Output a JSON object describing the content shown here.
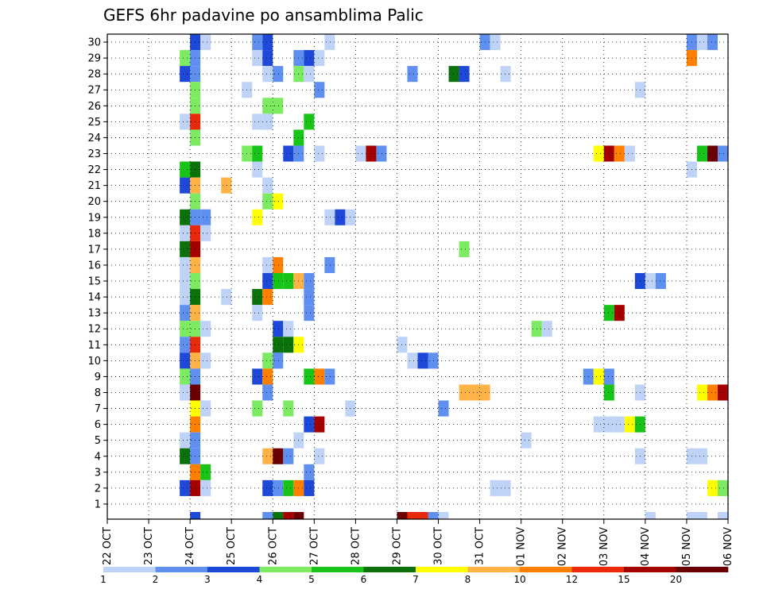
{
  "chart_data": {
    "type": "heatmap",
    "title": "GEFS 6hr padavine po ansamblima Palic",
    "xlabel": "",
    "ylabel": "",
    "x_ticks": [
      "22 OCT",
      "23 OCT",
      "24 OCT",
      "25 OCT",
      "26 OCT",
      "27 OCT",
      "28 OCT",
      "29 OCT",
      "30 OCT",
      "31 OCT",
      "01 NOV",
      "02 NOV",
      "03 NOV",
      "04 NOV",
      "05 NOV",
      "06 NOV"
    ],
    "x_unit": "6-hour step from 22 OCT 00Z (4 steps per day, 60 steps)",
    "xlim": [
      0,
      60
    ],
    "y_ticks": [
      1,
      2,
      3,
      4,
      5,
      6,
      7,
      8,
      9,
      10,
      11,
      12,
      13,
      14,
      15,
      16,
      17,
      18,
      19,
      20,
      21,
      22,
      23,
      24,
      25,
      26,
      27,
      28,
      29,
      30
    ],
    "ylim": [
      0,
      30
    ],
    "grid": true,
    "colorbar": {
      "colors": [
        "#bfd2f8",
        "#5f8fef",
        "#1e49d8",
        "#7ceb61",
        "#19c419",
        "#0b720b",
        "#ffff00",
        "#ffb347",
        "#ff7f00",
        "#e8290b",
        "#a50000",
        "#6b0000"
      ],
      "labels": [
        "1",
        "2",
        "3",
        "4",
        "5",
        "6",
        "7",
        "8",
        "10",
        "12",
        "15",
        "20"
      ]
    },
    "cells_format": "[member_row, x_step, colorbar_class_index] (class index into colorbar.colors: 0=1-2, 1=2-3, ... 11=>20)",
    "cells": [
      [
        30,
        8,
        2
      ],
      [
        30,
        9,
        0
      ],
      [
        30,
        14,
        1
      ],
      [
        30,
        15,
        2
      ],
      [
        30,
        21,
        0
      ],
      [
        30,
        36,
        1
      ],
      [
        30,
        37,
        0
      ],
      [
        30,
        56,
        1
      ],
      [
        30,
        57,
        0
      ],
      [
        30,
        58,
        1
      ],
      [
        29,
        7,
        3
      ],
      [
        29,
        8,
        1
      ],
      [
        29,
        14,
        0
      ],
      [
        29,
        15,
        2
      ],
      [
        29,
        18,
        1
      ],
      [
        29,
        19,
        2
      ],
      [
        29,
        20,
        0
      ],
      [
        29,
        56,
        8
      ],
      [
        28,
        7,
        2
      ],
      [
        28,
        8,
        1
      ],
      [
        28,
        15,
        0
      ],
      [
        28,
        16,
        1
      ],
      [
        28,
        18,
        3
      ],
      [
        28,
        19,
        0
      ],
      [
        28,
        29,
        1
      ],
      [
        28,
        33,
        5
      ],
      [
        28,
        34,
        2
      ],
      [
        28,
        38,
        0
      ],
      [
        27,
        8,
        3
      ],
      [
        27,
        13,
        0
      ],
      [
        27,
        20,
        1
      ],
      [
        27,
        51,
        0
      ],
      [
        26,
        8,
        3
      ],
      [
        26,
        15,
        3
      ],
      [
        26,
        16,
        3
      ],
      [
        25,
        7,
        0
      ],
      [
        25,
        8,
        9
      ],
      [
        25,
        14,
        0
      ],
      [
        25,
        15,
        0
      ],
      [
        25,
        19,
        4
      ],
      [
        24,
        8,
        3
      ],
      [
        24,
        18,
        4
      ],
      [
        23,
        13,
        3
      ],
      [
        23,
        14,
        4
      ],
      [
        23,
        17,
        2
      ],
      [
        23,
        18,
        1
      ],
      [
        23,
        20,
        0
      ],
      [
        23,
        24,
        0
      ],
      [
        23,
        25,
        10
      ],
      [
        23,
        26,
        1
      ],
      [
        23,
        47,
        6
      ],
      [
        23,
        48,
        10
      ],
      [
        23,
        49,
        8
      ],
      [
        23,
        50,
        0
      ],
      [
        23,
        57,
        4
      ],
      [
        23,
        58,
        11
      ],
      [
        23,
        59,
        1
      ],
      [
        22,
        7,
        4
      ],
      [
        22,
        8,
        5
      ],
      [
        22,
        14,
        0
      ],
      [
        22,
        56,
        0
      ],
      [
        21,
        7,
        2
      ],
      [
        21,
        8,
        7
      ],
      [
        21,
        11,
        7
      ],
      [
        21,
        15,
        0
      ],
      [
        20,
        8,
        3
      ],
      [
        20,
        15,
        3
      ],
      [
        20,
        16,
        6
      ],
      [
        19,
        7,
        5
      ],
      [
        19,
        8,
        1
      ],
      [
        19,
        9,
        1
      ],
      [
        19,
        14,
        6
      ],
      [
        19,
        21,
        0
      ],
      [
        19,
        22,
        2
      ],
      [
        19,
        23,
        0
      ],
      [
        18,
        7,
        0
      ],
      [
        18,
        8,
        9
      ],
      [
        18,
        9,
        0
      ],
      [
        17,
        7,
        5
      ],
      [
        17,
        8,
        10
      ],
      [
        17,
        34,
        3
      ],
      [
        16,
        7,
        0
      ],
      [
        16,
        8,
        7
      ],
      [
        16,
        15,
        0
      ],
      [
        16,
        16,
        8
      ],
      [
        16,
        21,
        1
      ],
      [
        15,
        7,
        0
      ],
      [
        15,
        8,
        3
      ],
      [
        15,
        15,
        2
      ],
      [
        15,
        16,
        4
      ],
      [
        15,
        17,
        4
      ],
      [
        15,
        18,
        7
      ],
      [
        15,
        19,
        1
      ],
      [
        15,
        51,
        2
      ],
      [
        15,
        52,
        0
      ],
      [
        15,
        53,
        1
      ],
      [
        14,
        7,
        0
      ],
      [
        14,
        8,
        5
      ],
      [
        14,
        11,
        0
      ],
      [
        14,
        14,
        5
      ],
      [
        14,
        15,
        8
      ],
      [
        14,
        19,
        1
      ],
      [
        13,
        7,
        1
      ],
      [
        13,
        8,
        7
      ],
      [
        13,
        14,
        0
      ],
      [
        13,
        19,
        1
      ],
      [
        13,
        48,
        4
      ],
      [
        13,
        49,
        10
      ],
      [
        12,
        7,
        3
      ],
      [
        12,
        8,
        3
      ],
      [
        12,
        9,
        0
      ],
      [
        12,
        16,
        2
      ],
      [
        12,
        17,
        0
      ],
      [
        12,
        41,
        3
      ],
      [
        12,
        42,
        0
      ],
      [
        11,
        7,
        1
      ],
      [
        11,
        8,
        9
      ],
      [
        11,
        16,
        5
      ],
      [
        11,
        17,
        5
      ],
      [
        11,
        18,
        6
      ],
      [
        11,
        28,
        0
      ],
      [
        10,
        7,
        2
      ],
      [
        10,
        8,
        7
      ],
      [
        10,
        9,
        0
      ],
      [
        10,
        15,
        3
      ],
      [
        10,
        16,
        1
      ],
      [
        10,
        29,
        0
      ],
      [
        10,
        30,
        2
      ],
      [
        10,
        31,
        1
      ],
      [
        9,
        7,
        3
      ],
      [
        9,
        8,
        1
      ],
      [
        9,
        14,
        2
      ],
      [
        9,
        15,
        8
      ],
      [
        9,
        19,
        4
      ],
      [
        9,
        20,
        8
      ],
      [
        9,
        21,
        1
      ],
      [
        9,
        46,
        1
      ],
      [
        9,
        47,
        6
      ],
      [
        9,
        48,
        1
      ],
      [
        8,
        7,
        0
      ],
      [
        8,
        8,
        11
      ],
      [
        8,
        15,
        1
      ],
      [
        8,
        34,
        7
      ],
      [
        8,
        35,
        7
      ],
      [
        8,
        36,
        7
      ],
      [
        8,
        48,
        4
      ],
      [
        8,
        51,
        0
      ],
      [
        8,
        57,
        6
      ],
      [
        8,
        58,
        8
      ],
      [
        8,
        59,
        10
      ],
      [
        7,
        8,
        6
      ],
      [
        7,
        9,
        0
      ],
      [
        7,
        14,
        3
      ],
      [
        7,
        17,
        3
      ],
      [
        7,
        23,
        0
      ],
      [
        7,
        32,
        1
      ],
      [
        6,
        8,
        8
      ],
      [
        6,
        19,
        2
      ],
      [
        6,
        20,
        10
      ],
      [
        6,
        47,
        0
      ],
      [
        6,
        48,
        0
      ],
      [
        6,
        49,
        0
      ],
      [
        6,
        50,
        6
      ],
      [
        6,
        51,
        4
      ],
      [
        5,
        7,
        0
      ],
      [
        5,
        8,
        1
      ],
      [
        5,
        18,
        0
      ],
      [
        5,
        40,
        0
      ],
      [
        4,
        7,
        5
      ],
      [
        4,
        8,
        1
      ],
      [
        4,
        15,
        7
      ],
      [
        4,
        16,
        11
      ],
      [
        4,
        17,
        1
      ],
      [
        4,
        20,
        0
      ],
      [
        4,
        51,
        0
      ],
      [
        4,
        56,
        0
      ],
      [
        4,
        57,
        0
      ],
      [
        3,
        8,
        8
      ],
      [
        3,
        9,
        4
      ],
      [
        3,
        19,
        1
      ],
      [
        2,
        7,
        2
      ],
      [
        2,
        8,
        10
      ],
      [
        2,
        9,
        0
      ],
      [
        2,
        15,
        2
      ],
      [
        2,
        16,
        1
      ],
      [
        2,
        17,
        4
      ],
      [
        2,
        18,
        8
      ],
      [
        2,
        19,
        2
      ],
      [
        2,
        37,
        0
      ],
      [
        2,
        38,
        0
      ],
      [
        2,
        58,
        6
      ],
      [
        2,
        59,
        3
      ]
    ],
    "bottom_strip": [
      [
        8,
        2
      ],
      [
        15,
        1
      ],
      [
        16,
        5
      ],
      [
        17,
        10
      ],
      [
        18,
        11
      ],
      [
        28,
        11
      ],
      [
        29,
        9
      ],
      [
        30,
        9
      ],
      [
        31,
        1
      ],
      [
        32,
        0
      ],
      [
        52,
        0
      ],
      [
        56,
        0
      ],
      [
        57,
        0
      ],
      [
        59,
        0
      ]
    ]
  }
}
